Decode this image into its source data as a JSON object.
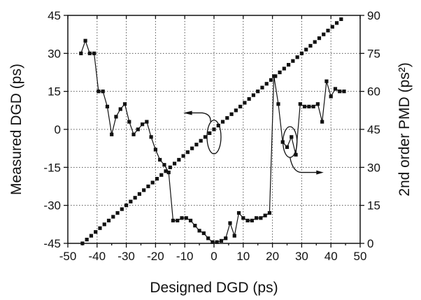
{
  "chart_data": {
    "type": "scatter",
    "xlabel": "Designed DGD (ps)",
    "ylabel": "Measured DGD (ps)",
    "y2label": "2nd order PMD (ps²)",
    "xlim": [
      -50,
      50
    ],
    "ylim": [
      -45,
      45
    ],
    "y2lim": [
      0,
      90
    ],
    "x_ticks": [
      "-50",
      "-40",
      "-30",
      "-20",
      "-10",
      "0",
      "10",
      "20",
      "30",
      "40",
      "50"
    ],
    "y_ticks": [
      "-45",
      "-30",
      "-15",
      "0",
      "15",
      "30",
      "45"
    ],
    "y2_ticks": [
      "0",
      "15",
      "30",
      "45",
      "60",
      "75",
      "90"
    ],
    "grid": true,
    "series": [
      {
        "axis": "left",
        "marker": "square",
        "line": false,
        "x": [
          -45,
          -43.5,
          -42,
          -40.5,
          -39,
          -37.5,
          -36,
          -34.5,
          -33,
          -31.5,
          -30,
          -28.5,
          -27,
          -25.5,
          -24,
          -22.5,
          -21,
          -19.5,
          -18,
          -16.5,
          -15,
          -13.5,
          -12,
          -10.5,
          -9,
          -7.5,
          -6,
          -4.5,
          -3,
          -1.5,
          0,
          1.5,
          3,
          4.5,
          6,
          7.5,
          9,
          10.5,
          12,
          13.5,
          15,
          16.5,
          18,
          19.5,
          21,
          22.5,
          24,
          25.5,
          27,
          28.5,
          30,
          31.5,
          33,
          34.5,
          36,
          37.5,
          39,
          40.5,
          42,
          43.5
        ],
        "y": [
          -45,
          -43.5,
          -42,
          -40.5,
          -39,
          -37.5,
          -36,
          -34.5,
          -33,
          -31.5,
          -30,
          -28.5,
          -27,
          -25.5,
          -24,
          -22.5,
          -21,
          -19.5,
          -18,
          -16.5,
          -15,
          -13.5,
          -12,
          -10.5,
          -9,
          -7.5,
          -6,
          -4.5,
          -3,
          -1.5,
          0,
          1.5,
          3,
          4.5,
          6,
          7.5,
          9,
          10.5,
          12,
          13.5,
          15,
          16.5,
          18,
          19.5,
          21,
          22.5,
          24,
          25.5,
          27,
          28.5,
          30,
          31.5,
          33,
          34.5,
          36,
          37.5,
          39,
          40.5,
          42,
          43.5
        ]
      },
      {
        "axis": "right",
        "marker": "square",
        "line": true,
        "x": [
          -45.5,
          -44,
          -42.5,
          -41,
          -39.5,
          -38,
          -36.5,
          -35,
          -33.5,
          -32,
          -30.5,
          -29,
          -27.5,
          -26,
          -24.5,
          -23,
          -21.5,
          -20,
          -18.5,
          -17,
          -15.5,
          -14,
          -12.5,
          -11,
          -9.5,
          -8,
          -6.5,
          -5,
          -3.5,
          -2,
          -0.5,
          1,
          2.5,
          4,
          5.5,
          7,
          8.5,
          10,
          11.5,
          13,
          14.5,
          16,
          17.5,
          19,
          20.5,
          22,
          23.5,
          25,
          26.5,
          28,
          29.5,
          31,
          32.5,
          34,
          35.5,
          37,
          38.5,
          40,
          41.5,
          43,
          44.5
        ],
        "y": [
          75,
          80,
          75,
          75,
          60,
          60,
          54,
          43,
          50,
          53,
          55,
          48,
          43,
          45,
          47,
          48,
          42,
          37,
          33,
          31,
          28,
          9,
          9,
          10,
          10,
          9,
          7,
          5,
          4,
          2,
          0.5,
          0.5,
          1,
          2,
          8,
          3,
          12,
          10,
          9,
          9,
          10,
          10,
          11,
          12,
          66,
          55,
          40,
          38,
          42,
          35,
          55,
          54,
          54,
          54,
          55,
          48,
          64,
          58,
          61,
          60,
          60
        ]
      }
    ],
    "annotations": [
      "left-axis pointer for DGD series",
      "right-axis pointer for PMD series"
    ]
  }
}
